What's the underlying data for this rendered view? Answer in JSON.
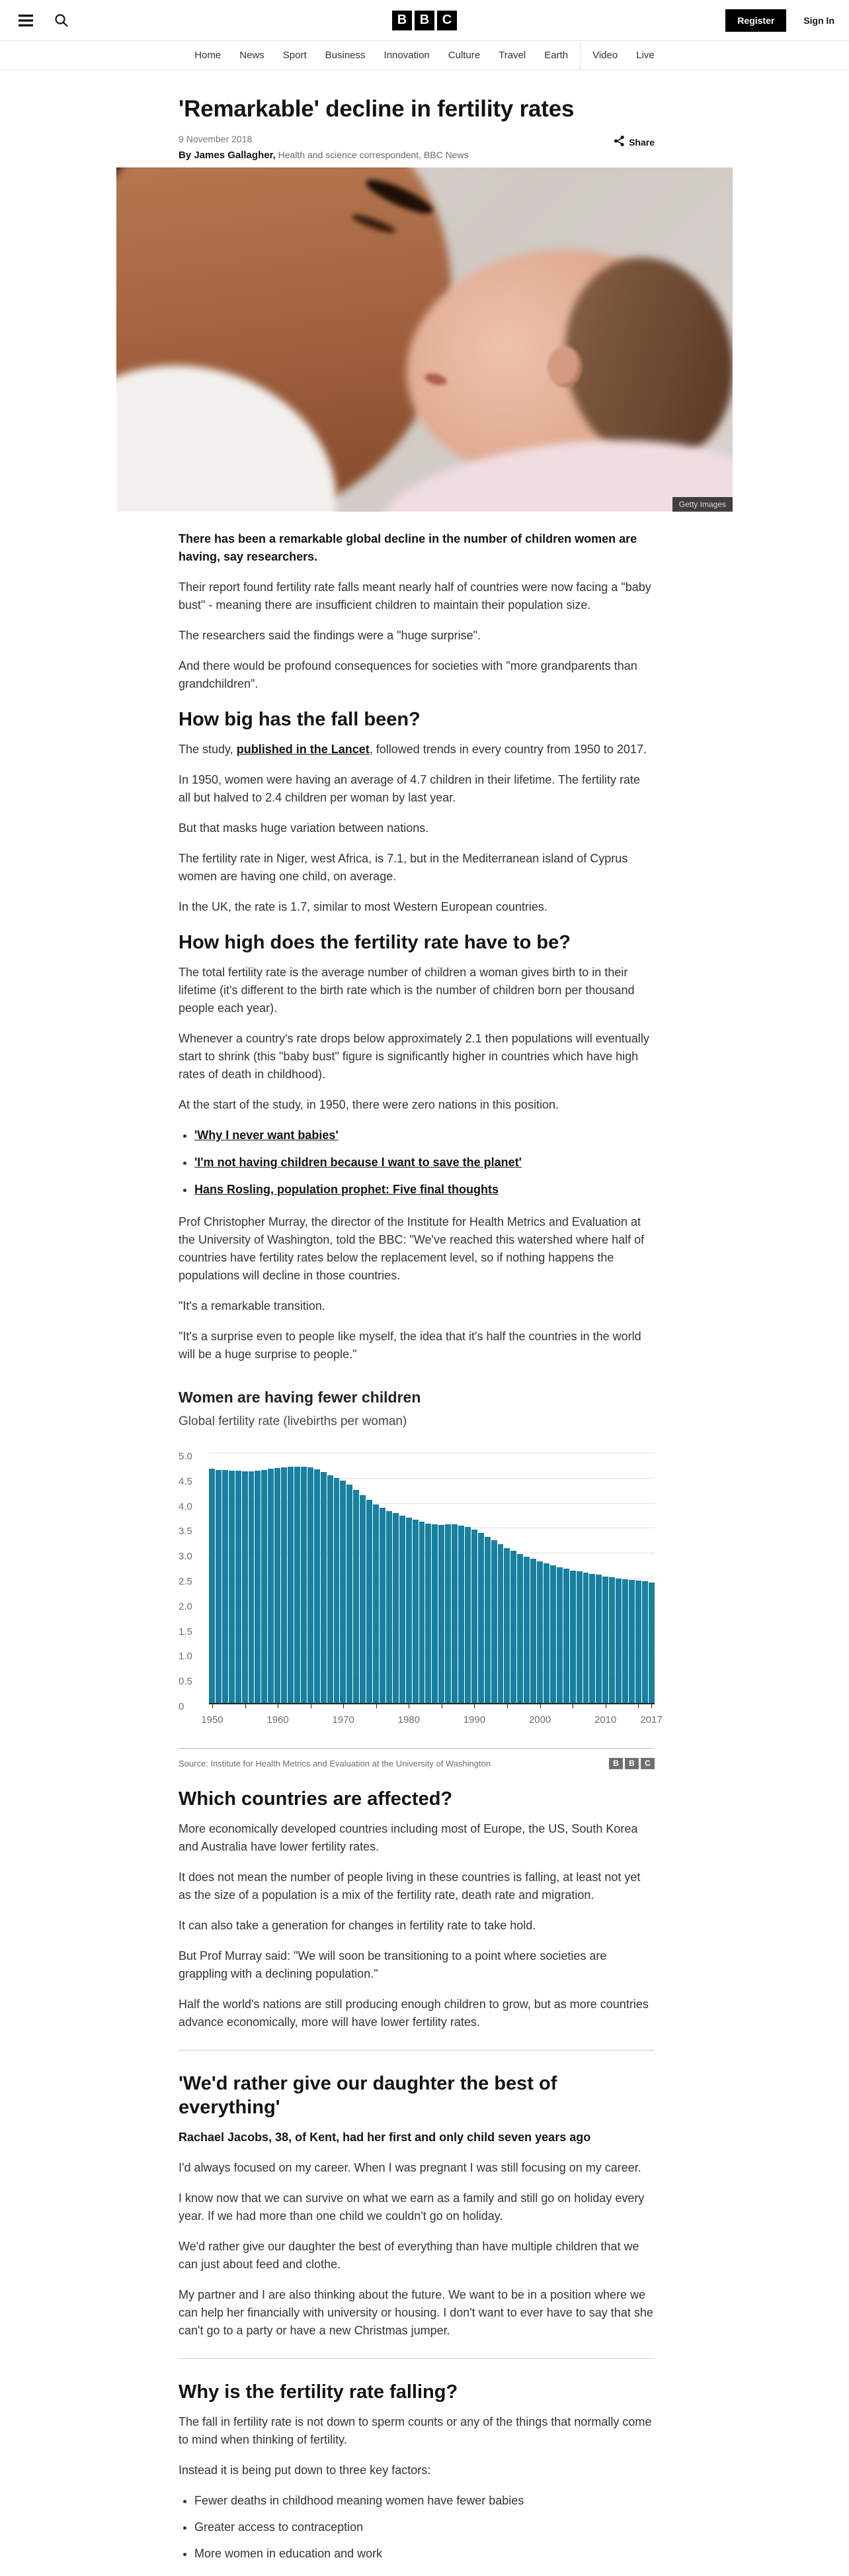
{
  "header": {
    "logo_letters": [
      "B",
      "B",
      "C"
    ],
    "register_label": "Register",
    "signin_label": "Sign In"
  },
  "nav": {
    "items": [
      "Home",
      "News",
      "Sport",
      "Business",
      "Innovation",
      "Culture",
      "Travel",
      "Earth",
      "Video",
      "Live"
    ]
  },
  "article": {
    "title": "'Remarkable' decline in fertility rates",
    "date": "9 November 2018",
    "byline_bold": "By James Gallagher,",
    "byline_rest": "Health and science correspondent, BBC News",
    "share_label": "Share",
    "image_credit": "Getty Images",
    "sections": {
      "intro": {
        "lead": "There has been a remarkable global decline in the number of children women are having, say researchers.",
        "paragraphs": [
          "Their report found fertility rate falls meant nearly half of countries were now facing a \"baby bust\" - meaning there are insufficient children to maintain their population size.",
          "The researchers said the findings were a \"huge surprise\".",
          "And there would be profound consequences for societies with \"more grandparents than grandchildren\"."
        ]
      },
      "fall": {
        "heading": "How big has the fall been?",
        "p1_prefix": "The study, ",
        "p1_link": "published in the Lancet",
        "p1_suffix": ", followed trends in every country from 1950 to 2017.",
        "paragraphs": [
          "In 1950, women were having an average of 4.7 children in their lifetime. The fertility rate all but halved to 2.4 children per woman by last year.",
          "But that masks huge variation between nations.",
          "The fertility rate in Niger, west Africa, is 7.1, but in the Mediterranean island of Cyprus women are having one child, on average.",
          "In the UK, the rate is 1.7, similar to most Western European countries."
        ]
      },
      "rate": {
        "heading": "How high does the fertility rate have to be?",
        "paragraphs": [
          "The total fertility rate is the average number of children a woman gives birth to in their lifetime (it's different to the birth rate which is the number of children born per thousand people each year).",
          "Whenever a country's rate drops below approximately 2.1 then populations will eventually start to shrink (this \"baby bust\" figure is significantly higher in countries which have high rates of death in childhood).",
          "At the start of the study, in 1950, there were zero nations in this position."
        ],
        "links": [
          "'Why I never want babies'",
          "'I'm not having children because I want to save the planet'",
          "Hans Rosling, population prophet: Five final thoughts"
        ],
        "paragraphs2": [
          "Prof Christopher Murray, the director of the Institute for Health Metrics and Evaluation at the University of Washington, told the BBC: \"We've reached this watershed where half of countries have fertility rates below the replacement level, so if nothing happens the populations will decline in those countries.",
          "\"It's a remarkable transition.",
          "\"It's a surprise even to people like myself, the idea that it's half the countries in the world will be a huge surprise to people.\""
        ]
      },
      "countries": {
        "heading": "Which countries are affected?",
        "paragraphs": [
          "More economically developed countries including most of Europe, the US, South Korea and Australia have lower fertility rates.",
          "It does not mean the number of people living in these countries is falling, at least not yet as the size of a population is a mix of the fertility rate, death rate and migration.",
          "It can also take a generation for changes in fertility rate to take hold.",
          "But Prof Murray said: \"We will soon be transitioning to a point where societies are grappling with a declining population.\"",
          "Half the world's nations are still producing enough children to grow, but as more countries advance economically, more will have lower fertility rates."
        ]
      },
      "daughter": {
        "heading": "'We'd rather give our daughter the best of everything'",
        "subheading": "Rachael Jacobs, 38, of Kent, had her first and only child seven years ago",
        "paragraphs": [
          "I'd always focused on my career. When I was pregnant I was still focusing on my career.",
          "I know now that we can survive on what we earn as a family and still go on holiday every year. If we had more than one child we couldn't go on holiday.",
          "We'd rather give our daughter the best of everything than have multiple children that we can just about feed and clothe.",
          "My partner and I are also thinking about the future. We want to be in a position where we can help her financially with university or housing. I don't want to ever have to say that she can't go to a party or have a new Christmas jumper."
        ]
      },
      "why": {
        "heading": "Why is the fertility rate falling?",
        "paragraphs": [
          "The fall in fertility rate is not down to sperm counts or any of the things that normally come to mind when thinking of fertility.",
          "Instead it is being put down to three key factors:"
        ],
        "bullets": [
          "Fewer deaths in childhood meaning women have fewer babies",
          "Greater access to contraception",
          "More women in education and work"
        ]
      }
    }
  },
  "chart_data": {
    "type": "bar",
    "title": "Women are having fewer children",
    "subtitle": "Global fertility rate (livebirths per woman)",
    "source": "Source: Institute for Health Metrics and Evaluation at the University of Washington",
    "bar_color": "#1980a0",
    "ylim": [
      0,
      5
    ],
    "grid": true,
    "yticks": [
      {
        "v": 5.0,
        "label": "5.0"
      },
      {
        "v": 4.5,
        "label": "4.5"
      },
      {
        "v": 4.0,
        "label": "4.0"
      },
      {
        "v": 3.5,
        "label": "3.5"
      },
      {
        "v": 3.0,
        "label": "3.0"
      },
      {
        "v": 2.5,
        "label": "2.5"
      },
      {
        "v": 2.0,
        "label": "2.0"
      },
      {
        "v": 1.5,
        "label": "1.5"
      },
      {
        "v": 1.0,
        "label": "1.0"
      },
      {
        "v": 0.5,
        "label": "0.5"
      },
      {
        "v": 0,
        "label": "0"
      }
    ],
    "xticks": [
      1950,
      1960,
      1970,
      1980,
      1990,
      2000,
      2010,
      2017
    ],
    "tick_years": [
      1950,
      1955,
      1960,
      1965,
      1970,
      1975,
      1980,
      1985,
      1990,
      1995,
      2000,
      2005,
      2010,
      2015,
      2017
    ],
    "years": [
      1950,
      1951,
      1952,
      1953,
      1954,
      1955,
      1956,
      1957,
      1958,
      1959,
      1960,
      1961,
      1962,
      1963,
      1964,
      1965,
      1966,
      1967,
      1968,
      1969,
      1970,
      1971,
      1972,
      1973,
      1974,
      1975,
      1976,
      1977,
      1978,
      1979,
      1980,
      1981,
      1982,
      1983,
      1984,
      1985,
      1986,
      1987,
      1988,
      1989,
      1990,
      1991,
      1992,
      1993,
      1994,
      1995,
      1996,
      1997,
      1998,
      1999,
      2000,
      2001,
      2002,
      2003,
      2004,
      2005,
      2006,
      2007,
      2008,
      2009,
      2010,
      2011,
      2012,
      2013,
      2014,
      2015,
      2016,
      2017
    ],
    "values": [
      4.68,
      4.66,
      4.65,
      4.64,
      4.64,
      4.63,
      4.63,
      4.64,
      4.66,
      4.68,
      4.7,
      4.71,
      4.72,
      4.72,
      4.72,
      4.71,
      4.67,
      4.61,
      4.55,
      4.5,
      4.44,
      4.36,
      4.26,
      4.16,
      4.06,
      3.97,
      3.9,
      3.84,
      3.79,
      3.74,
      3.7,
      3.66,
      3.62,
      3.59,
      3.57,
      3.56,
      3.57,
      3.57,
      3.55,
      3.52,
      3.47,
      3.4,
      3.32,
      3.25,
      3.17,
      3.1,
      3.04,
      2.98,
      2.93,
      2.88,
      2.83,
      2.79,
      2.75,
      2.71,
      2.68,
      2.65,
      2.63,
      2.61,
      2.58,
      2.56,
      2.53,
      2.51,
      2.49,
      2.48,
      2.46,
      2.45,
      2.43,
      2.41
    ]
  }
}
